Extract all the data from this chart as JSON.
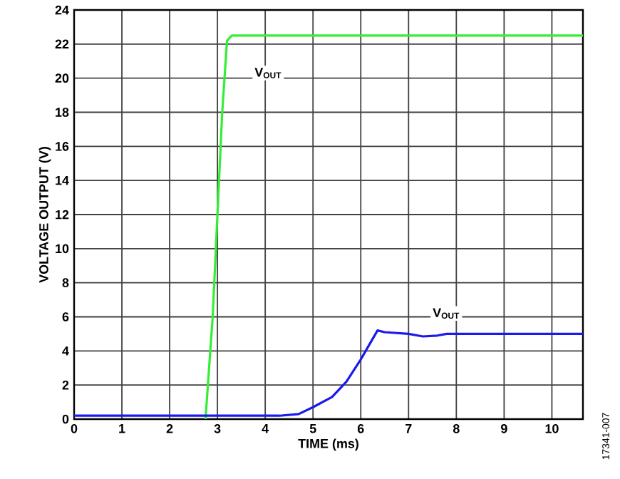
{
  "chart_data": {
    "type": "line",
    "xlabel": "TIME (ms)",
    "ylabel": "VOLTAGE OUTPUT (V)",
    "xlim": [
      0,
      10.65
    ],
    "ylim": [
      0,
      24
    ],
    "xticks": [
      0,
      1,
      2,
      3,
      4,
      5,
      6,
      7,
      8,
      9,
      10
    ],
    "yticks": [
      0,
      2,
      4,
      6,
      8,
      10,
      12,
      14,
      16,
      18,
      20,
      22,
      24
    ],
    "grid": true,
    "legend": false,
    "marker": "none",
    "line_style": "solid",
    "annotations": [
      "17341-007"
    ],
    "series": [
      {
        "name": "V$_{OUT}$",
        "color": "#33ee33",
        "x": [
          2.75,
          2.9,
          3.0,
          3.1,
          3.2,
          3.3,
          10.65
        ],
        "values": [
          0,
          6,
          12,
          18,
          22.2,
          22.5,
          22.5
        ]
      },
      {
        "name": "V$_{OUT}$",
        "color": "#1a1aee",
        "x": [
          0,
          4.3,
          4.7,
          5.0,
          5.4,
          5.7,
          6.0,
          6.35,
          6.5,
          7.0,
          7.3,
          7.6,
          7.8,
          10.65
        ],
        "values": [
          0.2,
          0.2,
          0.3,
          0.7,
          1.3,
          2.2,
          3.5,
          5.2,
          5.1,
          5.0,
          4.85,
          4.9,
          5.0,
          5.0
        ]
      }
    ]
  }
}
